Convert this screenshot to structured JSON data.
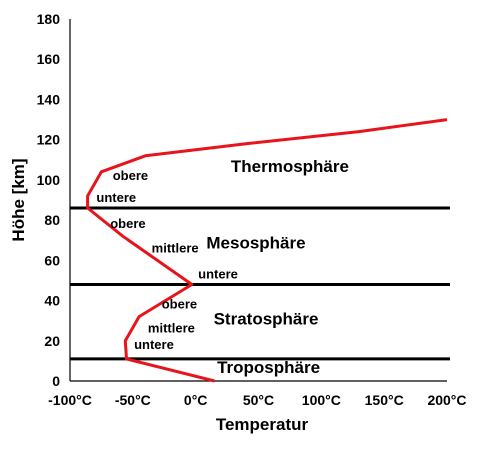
{
  "chart_data": {
    "type": "line",
    "xlabel": "Temperatur",
    "ylabel": "Höhe [km]",
    "xlim": [
      -100,
      200
    ],
    "ylim": [
      0,
      180
    ],
    "x_ticks": [
      -100,
      -50,
      0,
      50,
      100,
      150,
      200
    ],
    "x_tick_labels": [
      "-100°C",
      "-50°C",
      "0°C",
      "50°C",
      "100°C",
      "150°C",
      "200°C"
    ],
    "y_ticks": [
      0,
      20,
      40,
      60,
      80,
      100,
      120,
      140,
      160,
      180
    ],
    "y_tick_labels": [
      "0",
      "20",
      "40",
      "60",
      "80",
      "100",
      "120",
      "140",
      "160",
      "180"
    ],
    "grid": false,
    "series": [
      {
        "color": "#e8141b",
        "points": [
          [
            15,
            0
          ],
          [
            -55,
            11
          ],
          [
            -56,
            20
          ],
          [
            -45,
            32
          ],
          [
            -3,
            48
          ],
          [
            -58,
            72
          ],
          [
            -86,
            86
          ],
          [
            -86,
            92
          ],
          [
            -75,
            104
          ],
          [
            -40,
            112
          ],
          [
            40,
            118
          ],
          [
            130,
            124
          ],
          [
            200,
            130
          ]
        ]
      }
    ],
    "boundaries": [
      {
        "y": 11,
        "color": "#000000"
      },
      {
        "y": 48,
        "color": "#000000"
      },
      {
        "y": 86,
        "color": "#000000"
      }
    ],
    "annotations": [
      {
        "text": "Thermosphäre",
        "x": 75,
        "y": 104,
        "kind": "layer"
      },
      {
        "text": "Mesosphäre",
        "x": 48,
        "y": 66,
        "kind": "layer"
      },
      {
        "text": "Stratosphäre",
        "x": 56,
        "y": 28,
        "kind": "layer"
      },
      {
        "text": "Troposphäre",
        "x": 58,
        "y": 4,
        "kind": "layer"
      },
      {
        "text": "obere",
        "x": -66,
        "y": 100,
        "kind": "sub"
      },
      {
        "text": "untere",
        "x": -79,
        "y": 89,
        "kind": "sub"
      },
      {
        "text": "obere",
        "x": -68,
        "y": 76,
        "kind": "sub"
      },
      {
        "text": "mittlere",
        "x": -35,
        "y": 64,
        "kind": "sub"
      },
      {
        "text": "untere",
        "x": 2,
        "y": 51,
        "kind": "sub"
      },
      {
        "text": "obere",
        "x": -27,
        "y": 36,
        "kind": "sub"
      },
      {
        "text": "mittlere",
        "x": -38,
        "y": 24,
        "kind": "sub"
      },
      {
        "text": "untere",
        "x": -49,
        "y": 16,
        "kind": "sub"
      }
    ]
  }
}
